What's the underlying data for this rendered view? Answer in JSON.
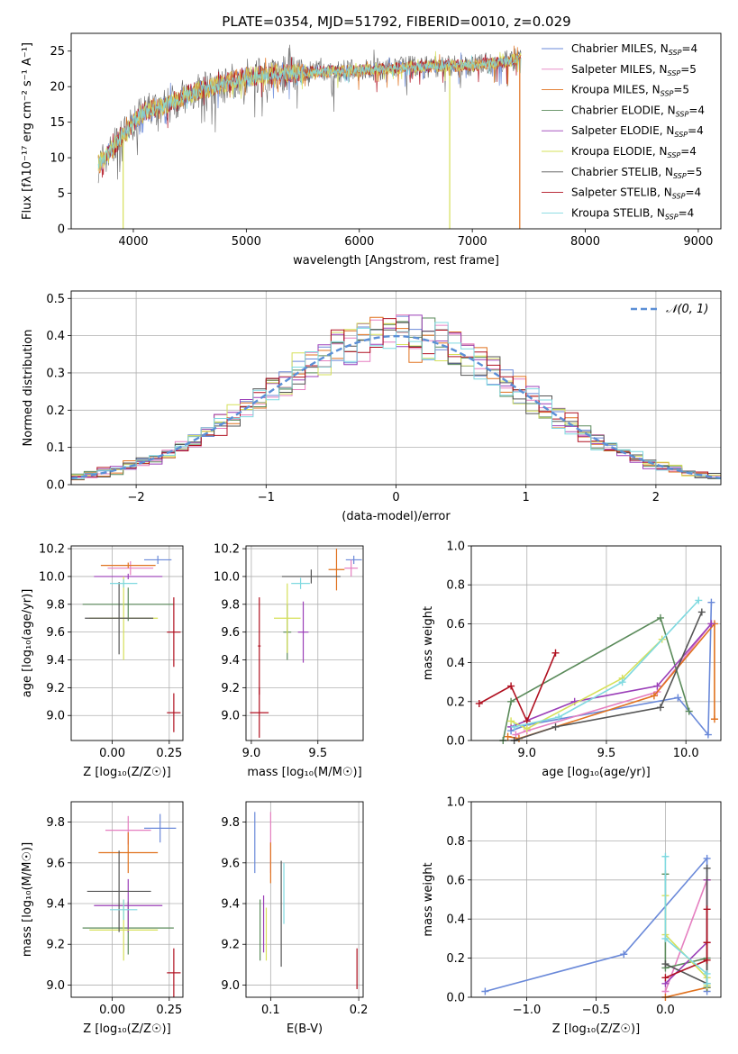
{
  "figure_title": "PLATE=0354, MJD=51792, FIBERID=0010, z=0.029",
  "colors": {
    "Chabrier MILES": "#6a89d9",
    "Salpeter MILES": "#e57fc0",
    "Kroupa MILES": "#e0721f",
    "Chabrier ELODIE": "#5a8a5a",
    "Salpeter ELODIE": "#9b3fb8",
    "Kroupa ELODIE": "#d6e05a",
    "Chabrier STELIB": "#555555",
    "Salpeter STELIB": "#b01020",
    "Kroupa STELIB": "#7fd9e0",
    "gaussian": "#5b8fd6",
    "grid": "#b0b0b0"
  },
  "chart_data": [
    {
      "id": "spectrum",
      "type": "line",
      "title": "PLATE=0354, MJD=51792, FIBERID=0010, z=0.029",
      "xlabel": "wavelength [Angstrom, rest frame]",
      "ylabel": "Flux [fλ10⁻¹⁷ erg cm⁻² s⁻¹ A⁻¹]",
      "xlim": [
        3450,
        9200
      ],
      "ylim": [
        0,
        27.5
      ],
      "xticks": [
        4000,
        5000,
        6000,
        7000,
        8000,
        9000
      ],
      "yticks": [
        0,
        5,
        10,
        15,
        20,
        25
      ],
      "grid": false,
      "legend_position": "upper-right",
      "legend": [
        {
          "name": "Chabrier MILES",
          "sub": "SSP",
          "n": "4"
        },
        {
          "name": "Salpeter MILES",
          "sub": "SSP",
          "n": "5"
        },
        {
          "name": "Kroupa MILES",
          "sub": "SSP",
          "n": "5"
        },
        {
          "name": "Chabrier ELODIE",
          "sub": "SSP",
          "n": "4"
        },
        {
          "name": "Salpeter ELODIE",
          "sub": "SSP",
          "n": "4"
        },
        {
          "name": "Kroupa ELODIE",
          "sub": "SSP",
          "n": "4"
        },
        {
          "name": "Chabrier STELIB",
          "sub": "SSP",
          "n": "5"
        },
        {
          "name": "Salpeter STELIB",
          "sub": "SSP",
          "n": "4"
        },
        {
          "name": "Kroupa STELIB",
          "sub": "SSP",
          "n": "4"
        }
      ],
      "continuum": [
        [
          3690,
          9
        ],
        [
          3800,
          11
        ],
        [
          3900,
          13
        ],
        [
          4000,
          15
        ],
        [
          4100,
          16.5
        ],
        [
          4300,
          17.5
        ],
        [
          4500,
          19
        ],
        [
          4800,
          20.5
        ],
        [
          5000,
          21.5
        ],
        [
          5500,
          22
        ],
        [
          6000,
          22.3
        ],
        [
          6500,
          22.8
        ],
        [
          7000,
          23
        ],
        [
          7300,
          23.5
        ],
        [
          7430,
          24
        ]
      ],
      "dropouts": [
        {
          "x": 3910,
          "y": 0
        },
        {
          "x": 6800,
          "y": 0
        },
        {
          "x": 7420,
          "y": 0
        }
      ]
    },
    {
      "id": "residuals",
      "type": "histogram",
      "xlabel": "(data-model)/error",
      "ylabel": "Normed distribution",
      "xlim": [
        -2.5,
        2.5
      ],
      "ylim": [
        0,
        0.52
      ],
      "xticks": [
        -2,
        -1,
        0,
        1,
        2
      ],
      "xtick_labels": [
        "−2",
        "−1",
        "0",
        "1",
        "2"
      ],
      "yticks": [
        0,
        0.1,
        0.2,
        0.3,
        0.4,
        0.5
      ],
      "ytick_labels": [
        "0.0",
        "0.1",
        "0.2",
        "0.3",
        "0.4",
        "0.5"
      ],
      "grid": true,
      "bin_width": 0.1,
      "legend": "𝒩(0, 1)",
      "legend_position": "upper-right",
      "series_names": [
        "Chabrier MILES",
        "Salpeter MILES",
        "Kroupa MILES",
        "Chabrier ELODIE",
        "Salpeter ELODIE",
        "Kroupa ELODIE",
        "Chabrier STELIB",
        "Salpeter STELIB",
        "Kroupa STELIB"
      ]
    },
    {
      "id": "z-age",
      "type": "errorbar",
      "xlabel": "Z [log₁₀(Z/Z☉)]",
      "ylabel": "age  [log₁₀(age/yr)]",
      "xlim": [
        -0.18,
        0.31
      ],
      "ylim": [
        8.82,
        10.22
      ],
      "xticks": [
        0,
        0.25
      ],
      "xtick_labels": [
        "0.00",
        "0.25"
      ],
      "yticks": [
        9.0,
        9.2,
        9.4,
        9.6,
        9.8,
        10.0,
        10.2
      ],
      "ytick_labels": [
        "9.0",
        "9.2",
        "9.4",
        "9.6",
        "9.8",
        "10.0",
        "10.2"
      ],
      "grid": true,
      "points": [
        {
          "s": "Chabrier MILES",
          "x": 0.2,
          "xe": 0.06,
          "y": 10.12,
          "ye": 0.03
        },
        {
          "s": "Salpeter MILES",
          "x": 0.08,
          "xe": 0.1,
          "y": 10.06,
          "ye": 0.05
        },
        {
          "s": "Kroupa MILES",
          "x": 0.07,
          "xe": 0.12,
          "y": 10.08,
          "ye": 0.02
        },
        {
          "s": "Chabrier ELODIE",
          "x": 0.07,
          "xe": 0.2,
          "y": 9.8,
          "ye": 0.12
        },
        {
          "s": "Salpeter ELODIE",
          "x": 0.07,
          "xe": 0.15,
          "y": 10.0,
          "ye": 0.02
        },
        {
          "s": "Kroupa ELODIE",
          "x": 0.05,
          "xe": 0.15,
          "y": 9.7,
          "ye": 0.3
        },
        {
          "s": "Chabrier STELIB",
          "x": 0.03,
          "xe": 0.15,
          "y": 9.7,
          "ye": 0.26
        },
        {
          "s": "Salpeter STELIB",
          "x": 0.27,
          "xe": 0.03,
          "y": 9.02,
          "ye": 0.14
        },
        {
          "s": "Salpeter STELIB",
          "x": 0.27,
          "xe": 0.03,
          "y": 9.6,
          "ye": 0.25
        },
        {
          "s": "Kroupa STELIB",
          "x": 0.05,
          "xe": 0.06,
          "y": 9.95,
          "ye": 0.03
        }
      ]
    },
    {
      "id": "mass-age",
      "type": "errorbar",
      "xlabel": "mass [log₁₀(M/M☉)]",
      "ylabel": "",
      "xlim": [
        8.96,
        9.84
      ],
      "ylim": [
        8.82,
        10.22
      ],
      "xticks": [
        9.0,
        9.5
      ],
      "xtick_labels": [
        "9.0",
        "9.5"
      ],
      "yticks": [
        9.0,
        9.2,
        9.4,
        9.6,
        9.8,
        10.0,
        10.2
      ],
      "ytick_labels": [
        "9.0",
        "9.2",
        "9.4",
        "9.6",
        "9.8",
        "10.0",
        "10.2"
      ],
      "grid": true,
      "points": [
        {
          "s": "Chabrier MILES",
          "x": 9.77,
          "xe": 0.06,
          "y": 10.12,
          "ye": 0.03
        },
        {
          "s": "Salpeter MILES",
          "x": 9.75,
          "xe": 0.05,
          "y": 10.06,
          "ye": 0.06
        },
        {
          "s": "Kroupa MILES",
          "x": 9.64,
          "xe": 0.06,
          "y": 10.05,
          "ye": 0.15
        },
        {
          "s": "Chabrier ELODIE",
          "x": 9.27,
          "xe": 0.03,
          "y": 9.6,
          "ye": 0.2
        },
        {
          "s": "Salpeter ELODIE",
          "x": 9.39,
          "xe": 0.04,
          "y": 9.6,
          "ye": 0.22
        },
        {
          "s": "Kroupa ELODIE",
          "x": 9.27,
          "xe": 0.1,
          "y": 9.7,
          "ye": 0.25
        },
        {
          "s": "Chabrier STELIB",
          "x": 9.45,
          "xe": 0.22,
          "y": 10.0,
          "ye": 0.05
        },
        {
          "s": "Salpeter STELIB",
          "x": 9.06,
          "xe": 0.07,
          "y": 9.02,
          "ye": 0.18
        },
        {
          "s": "Salpeter STELIB",
          "x": 9.06,
          "xe": 0.01,
          "y": 9.5,
          "ye": 0.35
        },
        {
          "s": "Kroupa STELIB",
          "x": 9.37,
          "xe": 0.07,
          "y": 9.95,
          "ye": 0.04
        }
      ]
    },
    {
      "id": "age-weight",
      "type": "line",
      "xlabel": "age  [log₁₀(age/yr)]",
      "ylabel": "mass weight",
      "xlim": [
        8.65,
        10.22
      ],
      "ylim": [
        0,
        1.0
      ],
      "xticks": [
        9.0,
        9.5,
        10.0
      ],
      "xtick_labels": [
        "9.0",
        "9.5",
        "10.0"
      ],
      "yticks": [
        0,
        0.2,
        0.4,
        0.6,
        0.8,
        1.0
      ],
      "ytick_labels": [
        "0.0",
        "0.2",
        "0.4",
        "0.6",
        "0.8",
        "1.0"
      ],
      "grid": true,
      "series": [
        {
          "name": "Chabrier MILES",
          "x": [
            8.9,
            9.0,
            9.95,
            10.14,
            10.16
          ],
          "y": [
            0.05,
            0.08,
            0.22,
            0.03,
            0.71
          ]
        },
        {
          "name": "Salpeter MILES",
          "x": [
            8.93,
            9.0,
            9.82,
            10.16
          ],
          "y": [
            0.03,
            0.05,
            0.25,
            0.6
          ]
        },
        {
          "name": "Kroupa MILES",
          "x": [
            8.88,
            8.95,
            9.8,
            10.18,
            10.18
          ],
          "y": [
            0.02,
            0.01,
            0.23,
            0.6,
            0.11
          ]
        },
        {
          "name": "Chabrier ELODIE",
          "x": [
            8.85,
            8.9,
            9.84,
            10.02
          ],
          "y": [
            0.0,
            0.2,
            0.63,
            0.15
          ]
        },
        {
          "name": "Salpeter ELODIE",
          "x": [
            8.9,
            9.3,
            9.82,
            10.16
          ],
          "y": [
            0.07,
            0.2,
            0.28,
            0.6
          ]
        },
        {
          "name": "Kroupa ELODIE",
          "x": [
            8.9,
            9.0,
            9.6,
            9.85
          ],
          "y": [
            0.1,
            0.06,
            0.32,
            0.52
          ]
        },
        {
          "name": "Chabrier STELIB",
          "x": [
            8.92,
            9.18,
            9.84,
            10.1
          ],
          "y": [
            0.0,
            0.07,
            0.17,
            0.66
          ]
        },
        {
          "name": "Salpeter STELIB",
          "x": [
            8.7,
            8.9,
            9.0,
            9.18
          ],
          "y": [
            0.19,
            0.28,
            0.1,
            0.45
          ]
        },
        {
          "name": "Kroupa STELIB",
          "x": [
            8.92,
            9.2,
            9.6,
            10.08
          ],
          "y": [
            0.07,
            0.12,
            0.3,
            0.72
          ]
        }
      ]
    },
    {
      "id": "z-mass",
      "type": "errorbar",
      "xlabel": "Z [log₁₀(Z/Z☉)]",
      "ylabel": "mass [log₁₀(M/M☉)]",
      "xlim": [
        -0.18,
        0.31
      ],
      "ylim": [
        8.94,
        9.9
      ],
      "xticks": [
        0,
        0.25
      ],
      "xtick_labels": [
        "0.00",
        "0.25"
      ],
      "yticks": [
        9.0,
        9.2,
        9.4,
        9.6,
        9.8
      ],
      "ytick_labels": [
        "9.0",
        "9.2",
        "9.4",
        "9.6",
        "9.8"
      ],
      "grid": true,
      "points": [
        {
          "s": "Chabrier MILES",
          "x": 0.21,
          "xe": 0.07,
          "y": 9.77,
          "ye": 0.07
        },
        {
          "s": "Salpeter MILES",
          "x": 0.07,
          "xe": 0.1,
          "y": 9.76,
          "ye": 0.07
        },
        {
          "s": "Kroupa MILES",
          "x": 0.07,
          "xe": 0.13,
          "y": 9.65,
          "ye": 0.1
        },
        {
          "s": "Chabrier ELODIE",
          "x": 0.07,
          "xe": 0.2,
          "y": 9.28,
          "ye": 0.13
        },
        {
          "s": "Salpeter ELODIE",
          "x": 0.07,
          "xe": 0.15,
          "y": 9.39,
          "ye": 0.13
        },
        {
          "s": "Kroupa ELODIE",
          "x": 0.05,
          "xe": 0.15,
          "y": 9.27,
          "ye": 0.15
        },
        {
          "s": "Chabrier STELIB",
          "x": 0.03,
          "xe": 0.14,
          "y": 9.46,
          "ye": 0.2
        },
        {
          "s": "Salpeter STELIB",
          "x": 0.27,
          "xe": 0.03,
          "y": 9.06,
          "ye": 0.12
        },
        {
          "s": "Kroupa STELIB",
          "x": 0.05,
          "xe": 0.06,
          "y": 9.37,
          "ye": 0.05
        }
      ]
    },
    {
      "id": "ebv-mass",
      "type": "errorbar",
      "xlabel": "E(B-V)",
      "ylabel": "",
      "xlim": [
        0.072,
        0.205
      ],
      "ylim": [
        8.94,
        9.9
      ],
      "xticks": [
        0.1,
        0.2
      ],
      "xtick_labels": [
        "0.1",
        "0.2"
      ],
      "yticks": [
        9.0,
        9.2,
        9.4,
        9.6,
        9.8
      ],
      "ytick_labels": [
        "9.0",
        "9.2",
        "9.4",
        "9.6",
        "9.8"
      ],
      "grid": true,
      "points": [
        {
          "s": "Chabrier MILES",
          "x": 0.082,
          "xe": 0.0,
          "y": 9.7,
          "ye": 0.15
        },
        {
          "s": "Salpeter MILES",
          "x": 0.1,
          "xe": 0.0,
          "y": 9.7,
          "ye": 0.15
        },
        {
          "s": "Kroupa MILES",
          "x": 0.1,
          "xe": 0.0,
          "y": 9.6,
          "ye": 0.1
        },
        {
          "s": "Chabrier ELODIE",
          "x": 0.088,
          "xe": 0.0,
          "y": 9.27,
          "ye": 0.15
        },
        {
          "s": "Salpeter ELODIE",
          "x": 0.092,
          "xe": 0.0,
          "y": 9.3,
          "ye": 0.14
        },
        {
          "s": "Kroupa ELODIE",
          "x": 0.095,
          "xe": 0.0,
          "y": 9.25,
          "ye": 0.13
        },
        {
          "s": "Chabrier STELIB",
          "x": 0.112,
          "xe": 0.0,
          "y": 9.35,
          "ye": 0.26
        },
        {
          "s": "Salpeter STELIB",
          "x": 0.198,
          "xe": 0.0,
          "y": 9.08,
          "ye": 0.1
        },
        {
          "s": "Kroupa STELIB",
          "x": 0.115,
          "xe": 0.0,
          "y": 9.45,
          "ye": 0.15
        }
      ]
    },
    {
      "id": "z-weight",
      "type": "line",
      "xlabel": "Z [log₁₀(Z/Z☉)]",
      "ylabel": "mass weight",
      "xlim": [
        -1.4,
        0.4
      ],
      "ylim": [
        0,
        1.0
      ],
      "xticks": [
        -1.0,
        -0.5,
        0.0
      ],
      "xtick_labels": [
        "−1.0",
        "−0.5",
        "0.0"
      ],
      "yticks": [
        0,
        0.2,
        0.4,
        0.6,
        0.8,
        1.0
      ],
      "ytick_labels": [
        "0.0",
        "0.2",
        "0.4",
        "0.6",
        "0.8",
        "1.0"
      ],
      "grid": true,
      "series": [
        {
          "name": "Chabrier MILES",
          "x": [
            -1.3,
            -0.3,
            0.3,
            0.3
          ],
          "y": [
            0.03,
            0.22,
            0.71,
            0.03
          ]
        },
        {
          "name": "Salpeter MILES",
          "x": [
            0.0,
            0.3,
            0.3
          ],
          "y": [
            0.03,
            0.6,
            0.05
          ]
        },
        {
          "name": "Kroupa MILES",
          "x": [
            0.0,
            0.3,
            0.3
          ],
          "y": [
            0.0,
            0.05,
            0.6
          ]
        },
        {
          "name": "Chabrier ELODIE",
          "x": [
            0.0,
            0.0,
            0.3,
            0.3
          ],
          "y": [
            0.63,
            0.15,
            0.2,
            0.05
          ]
        },
        {
          "name": "Salpeter ELODIE",
          "x": [
            0.0,
            0.3,
            0.3
          ],
          "y": [
            0.07,
            0.28,
            0.6
          ]
        },
        {
          "name": "Kroupa ELODIE",
          "x": [
            0.0,
            0.0,
            0.3,
            0.3
          ],
          "y": [
            0.52,
            0.32,
            0.1,
            0.06
          ]
        },
        {
          "name": "Chabrier STELIB",
          "x": [
            0.0,
            0.3,
            0.3
          ],
          "y": [
            0.17,
            0.07,
            0.66
          ]
        },
        {
          "name": "Salpeter STELIB",
          "x": [
            0.0,
            0.3,
            0.3,
            0.3
          ],
          "y": [
            0.1,
            0.19,
            0.45,
            0.28
          ]
        },
        {
          "name": "Kroupa STELIB",
          "x": [
            0.0,
            0.0,
            0.3,
            0.3
          ],
          "y": [
            0.72,
            0.3,
            0.12,
            0.07
          ]
        }
      ]
    }
  ]
}
